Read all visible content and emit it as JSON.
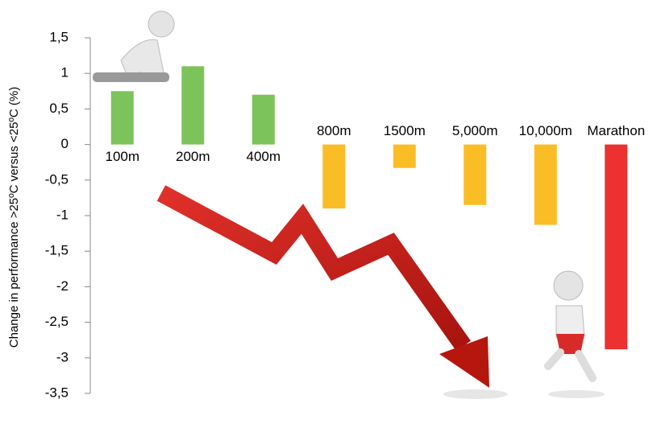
{
  "chart_data": {
    "type": "bar",
    "y_label": "Change in performance >25ºC versus <25ºC (%)",
    "categories": [
      "100m",
      "200m",
      "400m",
      "800m",
      "1500m",
      "5,000m",
      "10,000m",
      "Marathon"
    ],
    "values": [
      0.75,
      1.1,
      0.7,
      -0.9,
      -0.33,
      -0.85,
      -1.13,
      -2.88
    ],
    "colors": [
      "#7dc35b",
      "#7dc35b",
      "#7dc35b",
      "#fbbd26",
      "#fbbd26",
      "#fbbd26",
      "#fbbd26",
      "#ec3130"
    ],
    "ylim": [
      -3.5,
      1.5
    ],
    "yticks": [
      {
        "value": 1.5,
        "label": "1,5"
      },
      1,
      {
        "value": 0.5,
        "label": "0,5"
      },
      0,
      {
        "value": -0.5,
        "label": "-0,5"
      },
      -1,
      {
        "value": -1.5,
        "label": "-1,5"
      },
      -2,
      {
        "value": -2.5,
        "label": "-2,5"
      },
      -3,
      {
        "value": -3.5,
        "label": "-3,5"
      }
    ],
    "grid": false
  }
}
